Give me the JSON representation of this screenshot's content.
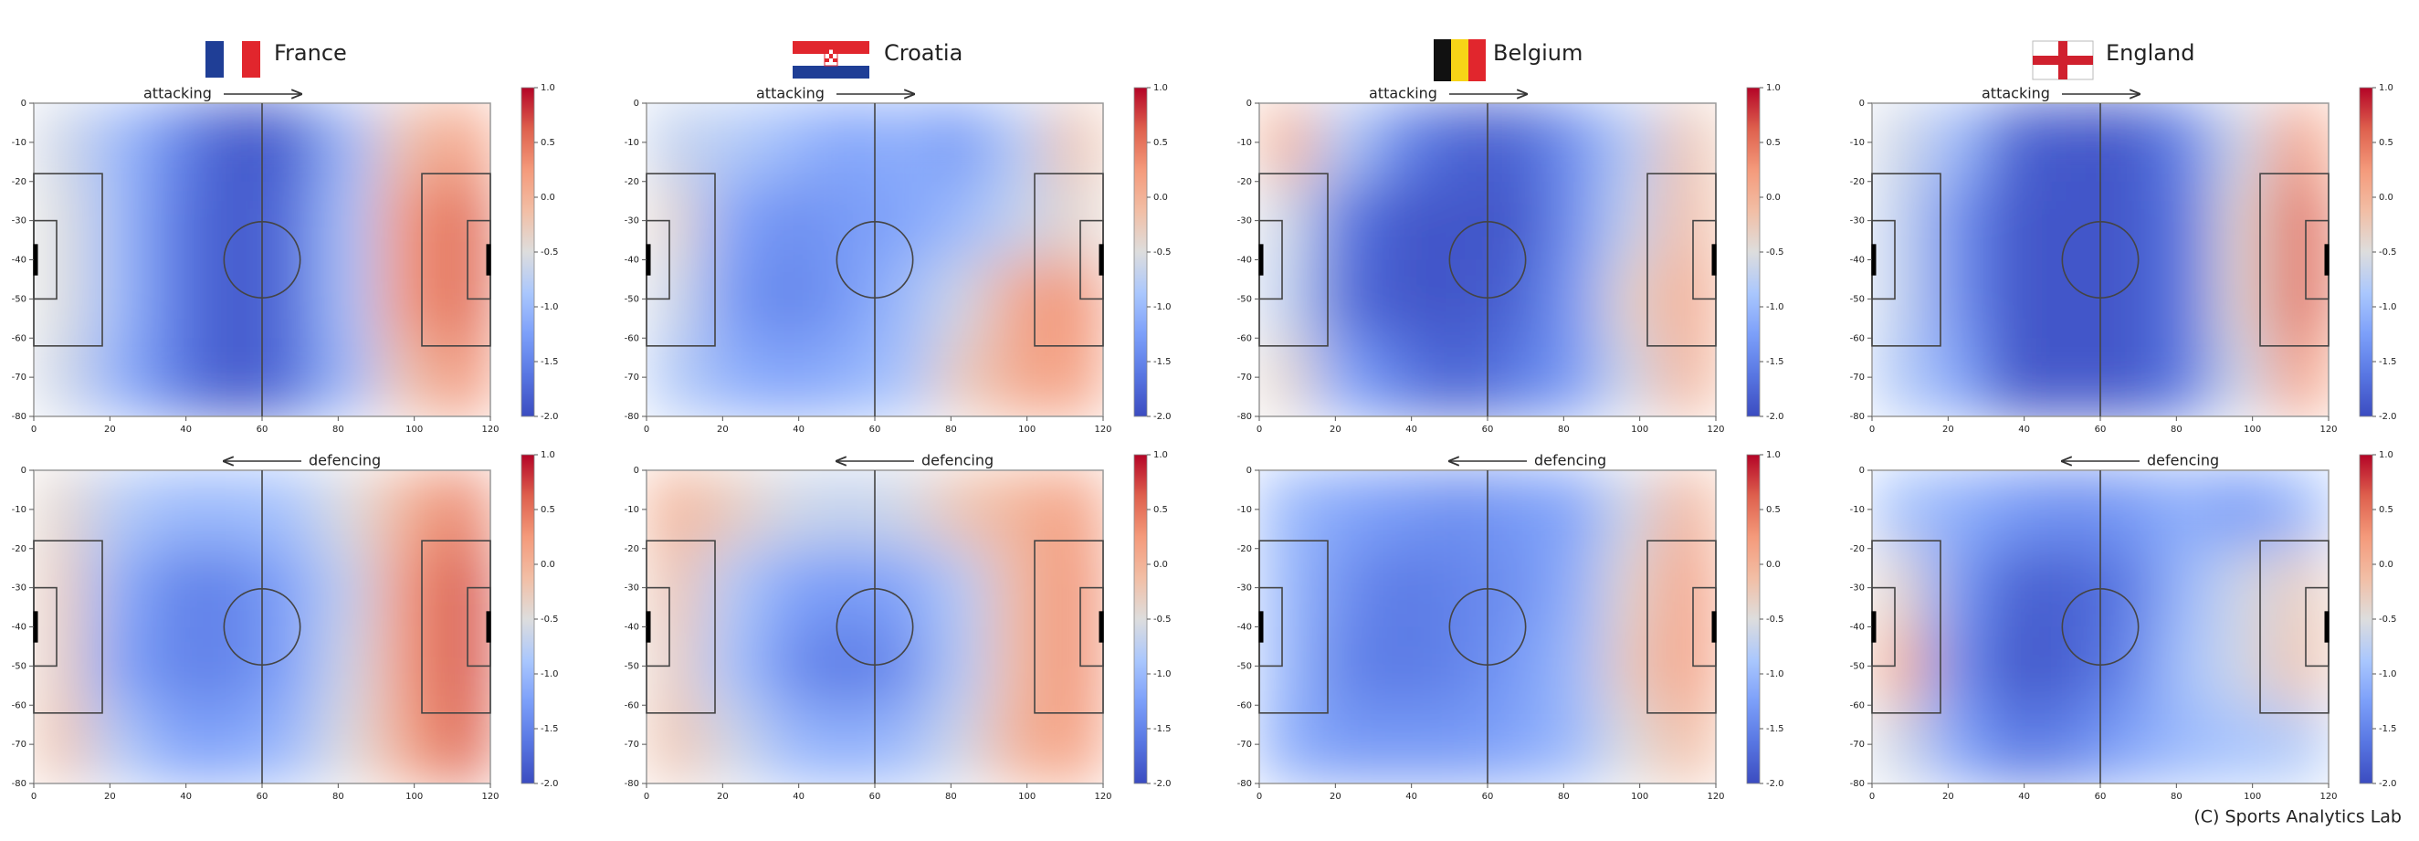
{
  "chart_data": [
    {
      "type": "heatmap",
      "title": "France",
      "annotation": "attacking",
      "cmap": "coolwarm",
      "xlim": [
        0,
        120
      ],
      "ylim": [
        -80,
        0
      ],
      "xticks": [
        0,
        20,
        40,
        60,
        80,
        100,
        120
      ],
      "yticks": [
        0,
        -10,
        -20,
        -30,
        -40,
        -50,
        -60,
        -70,
        -80
      ],
      "clim": [
        -2,
        1
      ],
      "cticks": [
        {
          "value": 1,
          "label": "1.0"
        },
        0.5,
        {
          "value": 0,
          "label": "0.0"
        },
        -0.5,
        {
          "value": -1,
          "label": "-1.0"
        },
        -1.5,
        {
          "value": -2,
          "label": "-2.0"
        }
      ],
      "values": [
        [
          -0.6,
          -1.0,
          -1.5,
          -1.9,
          -1.8,
          -1.0,
          -0.2,
          0.2
        ],
        [
          -0.5,
          -1.0,
          -1.6,
          -1.9,
          -1.7,
          -0.9,
          0.2,
          0.6
        ],
        [
          -0.5,
          -1.0,
          -1.6,
          -1.9,
          -1.7,
          -0.9,
          0.2,
          0.6
        ],
        [
          -0.6,
          -1.1,
          -1.6,
          -1.9,
          -1.7,
          -1.0,
          -0.2,
          0.3
        ]
      ]
    },
    {
      "type": "heatmap",
      "title": "Croatia",
      "annotation": "attacking",
      "cmap": "coolwarm",
      "xlim": [
        0,
        120
      ],
      "ylim": [
        -80,
        0
      ],
      "xticks": [
        0,
        20,
        40,
        60,
        80,
        100,
        120
      ],
      "yticks": [
        0,
        -10,
        -20,
        -30,
        -40,
        -50,
        -60,
        -70,
        -80
      ],
      "clim": [
        -2,
        1
      ],
      "cticks": [
        {
          "value": 1,
          "label": "1.0"
        },
        0.5,
        {
          "value": 0,
          "label": "0.0"
        },
        -0.5,
        {
          "value": -1,
          "label": "-1.0"
        },
        -1.5,
        {
          "value": -2,
          "label": "-2.0"
        }
      ],
      "values": [
        [
          -0.7,
          -0.8,
          -1.0,
          -1.2,
          -1.1,
          -1.3,
          -0.8,
          -0.2
        ],
        [
          -0.4,
          -1.2,
          -1.4,
          -1.3,
          -1.2,
          -1.0,
          -0.7,
          -0.4
        ],
        [
          -0.6,
          -1.3,
          -1.5,
          -1.3,
          -1.0,
          -0.6,
          0.1,
          0.3
        ],
        [
          -0.8,
          -1.1,
          -1.2,
          -1.1,
          -0.9,
          -0.3,
          0.1,
          0.2
        ]
      ]
    },
    {
      "type": "heatmap",
      "title": "Belgium",
      "annotation": "attacking",
      "cmap": "coolwarm",
      "xlim": [
        0,
        120
      ],
      "ylim": [
        -80,
        0
      ],
      "xticks": [
        0,
        20,
        40,
        60,
        80,
        100,
        120
      ],
      "yticks": [
        0,
        -10,
        -20,
        -30,
        -40,
        -50,
        -60,
        -70,
        -80
      ],
      "clim": [
        -2,
        1
      ],
      "cticks": [
        {
          "value": 1,
          "label": "1.0"
        },
        0.5,
        {
          "value": 0,
          "label": "0.0"
        },
        -0.5,
        {
          "value": -1,
          "label": "-1.0"
        },
        -1.5,
        {
          "value": -2,
          "label": "-2.0"
        }
      ],
      "values": [
        [
          0.0,
          -0.8,
          -1.5,
          -1.8,
          -1.8,
          -1.4,
          -0.8,
          -0.2
        ],
        [
          -0.6,
          -1.6,
          -1.9,
          -1.9,
          -1.9,
          -1.4,
          -0.7,
          -0.1
        ],
        [
          -0.7,
          -1.7,
          -1.9,
          -1.9,
          -1.8,
          -1.3,
          -0.4,
          0.1
        ],
        [
          -0.4,
          -1.2,
          -1.6,
          -1.8,
          -1.6,
          -1.3,
          -0.6,
          0.0
        ]
      ]
    },
    {
      "type": "heatmap",
      "title": "England",
      "annotation": "attacking",
      "cmap": "coolwarm",
      "xlim": [
        0,
        120
      ],
      "ylim": [
        -80,
        0
      ],
      "xticks": [
        0,
        20,
        40,
        60,
        80,
        100,
        120
      ],
      "yticks": [
        0,
        -10,
        -20,
        -30,
        -40,
        -50,
        -60,
        -70,
        -80
      ],
      "clim": [
        -2,
        1
      ],
      "cticks": [
        {
          "value": 1,
          "label": "1.0"
        },
        0.5,
        {
          "value": 0,
          "label": "0.0"
        },
        -0.5,
        {
          "value": -1,
          "label": "-1.0"
        },
        -1.5,
        {
          "value": -2,
          "label": "-2.0"
        }
      ],
      "values": [
        [
          -0.6,
          -1.0,
          -1.8,
          -1.9,
          -1.9,
          -1.5,
          -0.6,
          0.2
        ],
        [
          -0.7,
          -1.4,
          -1.9,
          -1.9,
          -1.9,
          -1.6,
          -0.4,
          0.6
        ],
        [
          -0.7,
          -1.4,
          -1.9,
          -1.9,
          -1.9,
          -1.6,
          -0.4,
          0.6
        ],
        [
          -0.8,
          -1.2,
          -1.9,
          -1.9,
          -1.9,
          -1.6,
          -0.6,
          0.2
        ]
      ]
    },
    {
      "type": "heatmap",
      "annotation": "defencing",
      "cmap": "coolwarm",
      "xlim": [
        0,
        120
      ],
      "ylim": [
        -80,
        0
      ],
      "xticks": [
        0,
        20,
        40,
        60,
        80,
        100,
        120
      ],
      "yticks": [
        0,
        -10,
        -20,
        -30,
        -40,
        -50,
        -60,
        -70,
        -80
      ],
      "clim": [
        -2,
        1
      ],
      "cticks": [
        {
          "value": 1,
          "label": "1.0"
        },
        0.5,
        {
          "value": 0,
          "label": "0.0"
        },
        -0.5,
        {
          "value": -1,
          "label": "-1.0"
        },
        -1.5,
        {
          "value": -2,
          "label": "-2.0"
        }
      ],
      "values": [
        [
          -0.4,
          -0.8,
          -1.0,
          -1.0,
          -0.9,
          -0.5,
          0.0,
          0.4
        ],
        [
          -0.3,
          -1.1,
          -1.5,
          -1.5,
          -1.2,
          -0.7,
          0.2,
          0.7
        ],
        [
          -0.3,
          -1.2,
          -1.5,
          -1.5,
          -1.2,
          -0.6,
          0.2,
          0.7
        ],
        [
          -0.2,
          -0.8,
          -1.2,
          -1.2,
          -1.0,
          -0.5,
          0.1,
          0.6
        ]
      ]
    },
    {
      "type": "heatmap",
      "annotation": "defencing",
      "cmap": "coolwarm",
      "xlim": [
        0,
        120
      ],
      "ylim": [
        -80,
        0
      ],
      "xticks": [
        0,
        20,
        40,
        60,
        80,
        100,
        120
      ],
      "yticks": [
        0,
        -10,
        -20,
        -30,
        -40,
        -50,
        -60,
        -70,
        -80
      ],
      "clim": [
        -2,
        1
      ],
      "cticks": [
        {
          "value": 1,
          "label": "1.0"
        },
        0.5,
        {
          "value": 0,
          "label": "0.0"
        },
        -0.5,
        {
          "value": -1,
          "label": "-1.0"
        },
        -1.5,
        {
          "value": -2,
          "label": "-2.0"
        }
      ],
      "values": [
        [
          0.0,
          -0.3,
          -0.6,
          -0.7,
          -0.6,
          -0.2,
          0.0,
          0.2
        ],
        [
          -0.2,
          -0.8,
          -1.2,
          -1.3,
          -1.2,
          -0.8,
          -0.1,
          0.3
        ],
        [
          -0.3,
          -0.9,
          -1.4,
          -1.6,
          -1.4,
          -0.8,
          -0.1,
          0.3
        ],
        [
          -0.2,
          -0.6,
          -1.0,
          -1.1,
          -1.0,
          -0.6,
          0.0,
          0.2
        ]
      ]
    },
    {
      "type": "heatmap",
      "annotation": "defencing",
      "cmap": "coolwarm",
      "xlim": [
        0,
        120
      ],
      "ylim": [
        -80,
        0
      ],
      "xticks": [
        0,
        20,
        40,
        60,
        80,
        100,
        120
      ],
      "yticks": [
        0,
        -10,
        -20,
        -30,
        -40,
        -50,
        -60,
        -70,
        -80
      ],
      "clim": [
        -2,
        1
      ],
      "cticks": [
        {
          "value": 1,
          "label": "1.0"
        },
        0.5,
        {
          "value": 0,
          "label": "0.0"
        },
        -0.5,
        {
          "value": -1,
          "label": "-1.0"
        },
        -1.5,
        {
          "value": -2,
          "label": "-2.0"
        }
      ],
      "values": [
        [
          -1.0,
          -1.2,
          -1.3,
          -1.4,
          -1.3,
          -1.2,
          -0.6,
          0.0
        ],
        [
          -1.0,
          -1.4,
          -1.6,
          -1.5,
          -1.4,
          -1.1,
          -0.4,
          0.2
        ],
        [
          -1.0,
          -1.5,
          -1.6,
          -1.5,
          -1.3,
          -1.0,
          -0.3,
          0.2
        ],
        [
          -1.1,
          -1.3,
          -1.3,
          -1.3,
          -1.2,
          -1.0,
          -0.5,
          -0.1
        ]
      ]
    },
    {
      "type": "heatmap",
      "annotation": "defencing",
      "cmap": "coolwarm",
      "xlim": [
        0,
        120
      ],
      "ylim": [
        -80,
        0
      ],
      "xticks": [
        0,
        20,
        40,
        60,
        80,
        100,
        120
      ],
      "yticks": [
        0,
        -10,
        -20,
        -30,
        -40,
        -50,
        -60,
        -70,
        -80
      ],
      "clim": [
        -2,
        1
      ],
      "cticks": [
        {
          "value": 1,
          "label": "1.0"
        },
        0.5,
        {
          "value": 0,
          "label": "0.0"
        },
        -0.5,
        {
          "value": -1,
          "label": "-1.0"
        },
        -1.5,
        {
          "value": -2,
          "label": "-2.0"
        }
      ],
      "values": [
        [
          -0.9,
          -1.1,
          -1.3,
          -1.4,
          -1.3,
          -1.1,
          -1.3,
          -1.0
        ],
        [
          -0.4,
          -1.3,
          -1.8,
          -1.8,
          -1.6,
          -1.0,
          -0.6,
          -0.3
        ],
        [
          0.0,
          -1.4,
          -1.9,
          -1.8,
          -1.5,
          -0.9,
          -0.6,
          -0.2
        ],
        [
          -0.6,
          -1.2,
          -1.6,
          -1.5,
          -1.2,
          -1.0,
          -0.9,
          -0.8
        ]
      ]
    }
  ],
  "footer": "(C) Sports Analytics Lab"
}
